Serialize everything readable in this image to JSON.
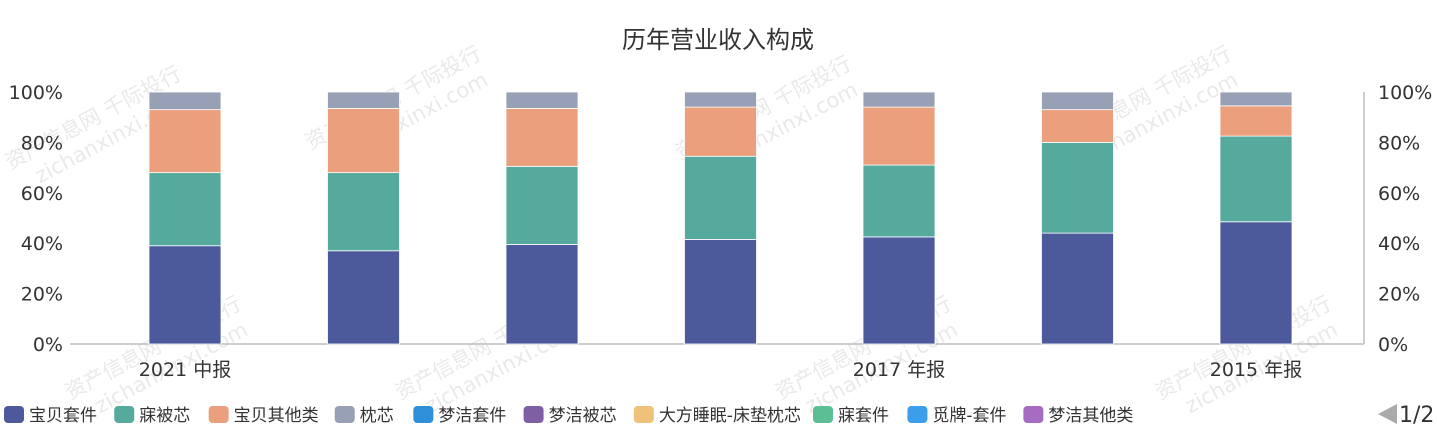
{
  "chart_data": {
    "type": "bar",
    "stacked": true,
    "title": "历年营业收入构成",
    "categories": [
      "2021 中报",
      "",
      "",
      "",
      "2017 年报",
      "",
      "2015 年报"
    ],
    "yticks": [
      "0%",
      "20%",
      "40%",
      "60%",
      "80%",
      "100%"
    ],
    "ylim": [
      0,
      100
    ],
    "series": [
      {
        "name": "宝贝套件",
        "color": "#4c5a9c",
        "values": [
          39,
          37,
          39.5,
          41.5,
          42.5,
          44,
          48.5
        ]
      },
      {
        "name": "寐被芯",
        "color": "#56a99d",
        "values": [
          29,
          31,
          31,
          33,
          28.5,
          36,
          34
        ]
      },
      {
        "name": "宝贝其他类",
        "color": "#eb9f7c",
        "values": [
          25,
          25.5,
          23,
          19.5,
          23,
          13,
          12
        ]
      },
      {
        "name": "枕芯",
        "color": "#98a0b5",
        "values": [
          7,
          6.5,
          6.5,
          6,
          6,
          7,
          5.5
        ]
      },
      {
        "name": "梦洁套件",
        "color": "#2f8fd8",
        "values": [
          0,
          0,
          0,
          0,
          0,
          0,
          0
        ]
      },
      {
        "name": "梦洁被芯",
        "color": "#7e5fa6",
        "values": [
          0,
          0,
          0,
          0,
          0,
          0,
          0
        ]
      },
      {
        "name": "大方睡眠-床垫枕芯",
        "color": "#efc27a",
        "values": [
          0,
          0,
          0,
          0,
          0,
          0,
          0
        ]
      },
      {
        "name": "寐套件",
        "color": "#5bbf93",
        "values": [
          0,
          0,
          0,
          0,
          0,
          0,
          0
        ]
      },
      {
        "name": "觅牌-套件",
        "color": "#3c9ee8",
        "values": [
          0,
          0,
          0,
          0,
          0,
          0,
          0
        ]
      },
      {
        "name": "梦洁其他类",
        "color": "#a56cc1",
        "values": [
          0,
          0,
          0,
          0,
          0,
          0,
          0
        ]
      }
    ],
    "legend_position": "bottom",
    "grid": false
  },
  "pager": {
    "text": "1/2"
  },
  "watermark": {
    "cn": "资产信息网 千际投行",
    "en": "zichanxinxi.com"
  }
}
